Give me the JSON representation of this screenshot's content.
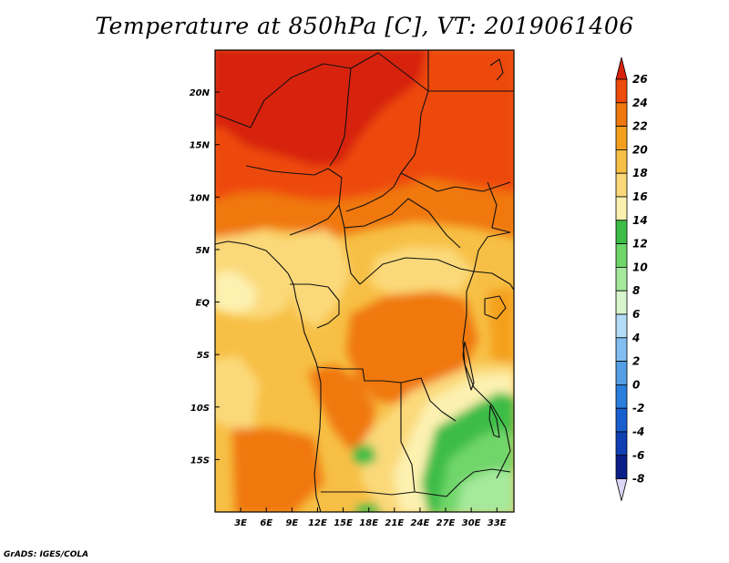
{
  "title": "Temperature at 850hPa [C], VT: 2019061406",
  "footer": "GrADS: IGES/COLA",
  "map": {
    "lon_range": [
      0,
      35
    ],
    "lat_range": [
      -20,
      24
    ],
    "lon_ticks": [
      {
        "value": 3,
        "label": "3E"
      },
      {
        "value": 6,
        "label": "6E"
      },
      {
        "value": 9,
        "label": "9E"
      },
      {
        "value": 12,
        "label": "12E"
      },
      {
        "value": 15,
        "label": "15E"
      },
      {
        "value": 18,
        "label": "18E"
      },
      {
        "value": 21,
        "label": "21E"
      },
      {
        "value": 24,
        "label": "24E"
      },
      {
        "value": 27,
        "label": "27E"
      },
      {
        "value": 30,
        "label": "30E"
      },
      {
        "value": 33,
        "label": "33E"
      }
    ],
    "lat_ticks": [
      {
        "value": 20,
        "label": "20N"
      },
      {
        "value": 15,
        "label": "15N"
      },
      {
        "value": 10,
        "label": "10N"
      },
      {
        "value": 5,
        "label": "5N"
      },
      {
        "value": 0,
        "label": "EQ"
      },
      {
        "value": -5,
        "label": "5S"
      },
      {
        "value": -10,
        "label": "10S"
      },
      {
        "value": -15,
        "label": "15S"
      }
    ]
  },
  "colorbar": {
    "levels": [
      26,
      24,
      22,
      20,
      18,
      16,
      14,
      12,
      10,
      8,
      6,
      4,
      2,
      0,
      -2,
      -4,
      -6,
      -8
    ],
    "colors_top_to_bottom": [
      "#e8240c",
      "#ee4a0c",
      "#f0780e",
      "#f5a01c",
      "#f7bf45",
      "#fbd97a",
      "#fdf1b0",
      "#3cbd46",
      "#6fd66a",
      "#a5e99c",
      "#d6f5cc",
      "#b5dcf7",
      "#82bff0",
      "#549fe6",
      "#2b7fdc",
      "#1a5fd0",
      "#1040b4",
      "#0a1e88",
      "#060b4e"
    ],
    "top_triangle_color": "#d7230b",
    "bottom_triangle_color": "#dcd6f5"
  },
  "temperature_fill": {
    "colors": {
      "t26": "#d7230b",
      "t24": "#ee4a0c",
      "t22": "#f0780e",
      "t20": "#f5a01c",
      "t18": "#f7bf45",
      "t16": "#fbd97a",
      "t14": "#fdf1b0",
      "t12": "#3cbd46",
      "t10": "#6fd66a",
      "t8": "#a5e99c"
    }
  }
}
